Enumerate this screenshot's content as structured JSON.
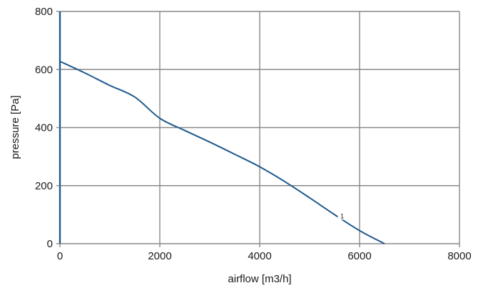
{
  "chart_data": {
    "type": "line",
    "xlabel": "airflow [m3/h]",
    "ylabel": "pressure [Pa]",
    "xlim": [
      0,
      8000
    ],
    "ylim": [
      0,
      800
    ],
    "x_ticks": [
      0,
      2000,
      4000,
      6000,
      8000
    ],
    "y_ticks": [
      0,
      200,
      400,
      600,
      800
    ],
    "x_tick_labels": [
      "0",
      "2000",
      "4000",
      "6000",
      "8000"
    ],
    "y_tick_labels": [
      "0",
      "200",
      "400",
      "600",
      "800"
    ],
    "grid": true,
    "series": [
      {
        "name": "1",
        "color": "#1f5a8c",
        "x": [
          0,
          500,
          1000,
          1500,
          2000,
          2500,
          3000,
          3500,
          4000,
          4500,
          5000,
          5500,
          6000,
          6500
        ],
        "y": [
          628,
          588,
          545,
          505,
          432,
          390,
          350,
          308,
          265,
          214,
          158,
          100,
          45,
          0
        ],
        "label_at": {
          "x": 5650,
          "y": 95
        }
      }
    ],
    "grid_color": "#888888",
    "axis_color": "#1f5a8c",
    "frame_color": "#888888"
  }
}
